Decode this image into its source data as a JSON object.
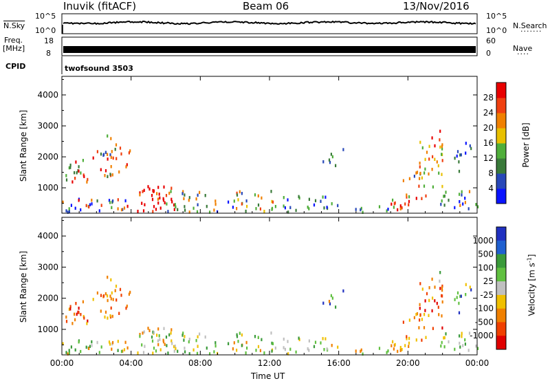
{
  "header": {
    "station": "Inuvik (fitACF)",
    "beam": "Beam 06",
    "date": "13/Nov/2016"
  },
  "noise_panel": {
    "left_label": "N.Sky",
    "right_label": "N.Search",
    "left_ticks": [
      "10^5",
      "10^0"
    ],
    "right_ticks": [
      "10^5",
      "10^0"
    ]
  },
  "freq_panel": {
    "left_label_1": "Freq.",
    "left_label_2": "[MHz]",
    "right_label": "Nave",
    "left_ticks": [
      "18",
      "8"
    ],
    "right_ticks": [
      "60",
      "0"
    ]
  },
  "cpid_panel": {
    "label": "CPID",
    "program": "twofsound 3503"
  },
  "colors": {
    "power_scale": [
      "#0a14ff",
      "#2848b8",
      "#3a7a3a",
      "#4fae3a",
      "#e8c000",
      "#f08000",
      "#f04010",
      "#e80000"
    ],
    "velocity_scale": [
      "#2030c0",
      "#2060d0",
      "#3a9a3a",
      "#60c040",
      "#c0c0c0",
      "#f0c000",
      "#f08000",
      "#f04000",
      "#e00000"
    ]
  },
  "chart_data": [
    {
      "type": "heatmap",
      "name": "power",
      "ylabel": "Slant Range [km]",
      "ylim": [
        180,
        4600
      ],
      "yticks": [
        "1000",
        "2000",
        "3000",
        "4000"
      ],
      "xlim": [
        "00:00",
        "24:00"
      ],
      "xticks": [
        "00:00",
        "04:00",
        "08:00",
        "12:00",
        "16:00",
        "20:00",
        "00:00"
      ],
      "colorbar": {
        "label": "Power [dB]",
        "range": [
          0,
          32
        ],
        "ticks": [
          "4",
          "8",
          "12",
          "16",
          "20",
          "24",
          "28"
        ]
      }
    },
    {
      "type": "heatmap",
      "name": "velocity",
      "ylabel": "Slant Range [km]",
      "xlabel": "Time UT",
      "ylim": [
        180,
        4600
      ],
      "yticks": [
        "1000",
        "2000",
        "3000",
        "4000"
      ],
      "xlim": [
        "00:00",
        "24:00"
      ],
      "xticks": [
        "00:00",
        "04:00",
        "08:00",
        "12:00",
        "16:00",
        "20:00",
        "00:00"
      ],
      "colorbar": {
        "label_main": "Velocity [m s",
        "label_sup": "-1",
        "label_end": "]",
        "ticks": [
          "1000",
          "500",
          "100",
          "25",
          "-25",
          "-100",
          "-500",
          "-1000"
        ]
      }
    }
  ]
}
